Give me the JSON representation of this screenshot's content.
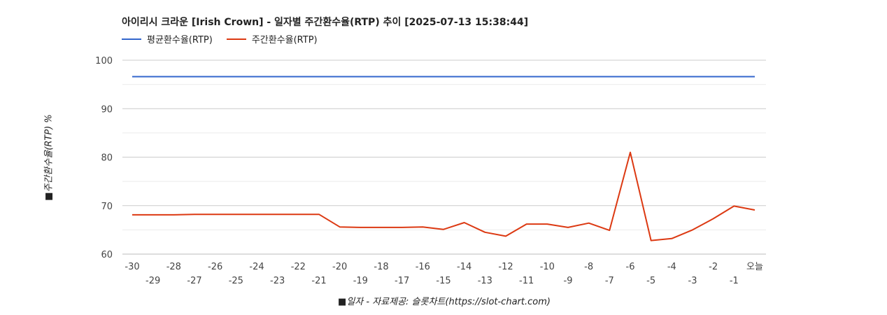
{
  "chart_data": {
    "type": "line",
    "title": "아이리시 크라운 [Irish Crown] - 일자별 주간환수율(RTP) 추이 [2025-07-13 15:38:44]",
    "ylabel": "■주간환수율(RTP) %",
    "xlabel": "■일자 - 자료제공: 슬롯차트(https://slot-chart.com)",
    "ylim": [
      60,
      100
    ],
    "yticks": [
      "60",
      "70",
      "80",
      "90",
      "100"
    ],
    "categories": [
      "-30",
      "-29",
      "-28",
      "-27",
      "-26",
      "-25",
      "-24",
      "-23",
      "-22",
      "-21",
      "-20",
      "-19",
      "-18",
      "-17",
      "-16",
      "-15",
      "-14",
      "-13",
      "-12",
      "-11",
      "-10",
      "-9",
      "-8",
      "-7",
      "-6",
      "-5",
      "-4",
      "-3",
      "-2",
      "-1",
      "오늘"
    ],
    "series": [
      {
        "name": "평균환수율(RTP)",
        "color": "#3366cc",
        "values": [
          96.6,
          96.6,
          96.6,
          96.6,
          96.6,
          96.6,
          96.6,
          96.6,
          96.6,
          96.6,
          96.6,
          96.6,
          96.6,
          96.6,
          96.6,
          96.6,
          96.6,
          96.6,
          96.6,
          96.6,
          96.6,
          96.6,
          96.6,
          96.6,
          96.6,
          96.6,
          96.6,
          96.6,
          96.6,
          96.6,
          96.6
        ]
      },
      {
        "name": "주간환수율(RTP)",
        "color": "#dc3912",
        "values": [
          68.1,
          68.1,
          68.1,
          68.2,
          68.2,
          68.2,
          68.2,
          68.2,
          68.2,
          68.2,
          65.6,
          65.5,
          65.5,
          65.5,
          65.6,
          65.1,
          66.5,
          64.5,
          63.7,
          66.2,
          66.2,
          65.5,
          66.4,
          64.9,
          81.0,
          62.8,
          63.2,
          65.0,
          67.3,
          69.9,
          69.1
        ]
      }
    ],
    "grid": true,
    "legend": "top-left"
  }
}
